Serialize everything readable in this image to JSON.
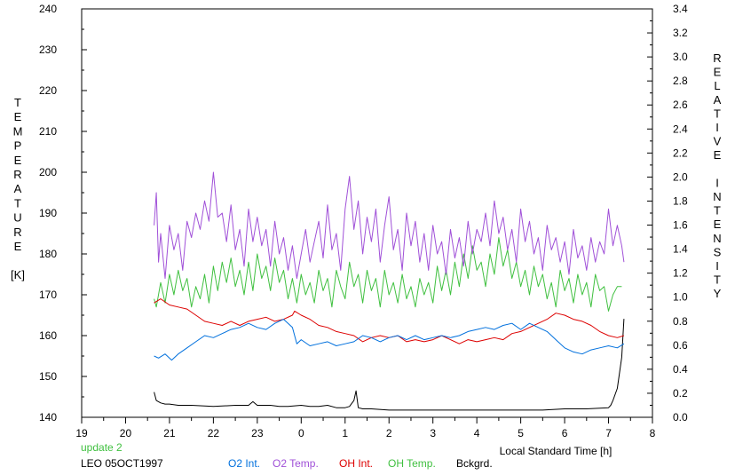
{
  "chart_data": {
    "type": "line",
    "title": "",
    "xlabel": "Local Standard Time [h]",
    "ylabel_left": "TEMPERATURE",
    "ylabel_left_unit": "[K]",
    "ylabel_right": "RELATIVE INTENSITY",
    "x_ticks": [
      "19",
      "20",
      "21",
      "22",
      "23",
      "0",
      "1",
      "2",
      "3",
      "4",
      "5",
      "6",
      "7",
      "8"
    ],
    "xlim": [
      0,
      13
    ],
    "ylim_left": [
      140,
      240
    ],
    "y_ticks_left": [
      "140",
      "150",
      "160",
      "170",
      "180",
      "190",
      "200",
      "210",
      "220",
      "230",
      "240"
    ],
    "ylim_right": [
      0.0,
      3.4
    ],
    "y_ticks_right": [
      "0.0",
      "0.2",
      "0.4",
      "0.6",
      "0.8",
      "1.0",
      "1.2",
      "1.4",
      "1.6",
      "1.8",
      "2.0",
      "2.2",
      "2.4",
      "2.6",
      "2.8",
      "3.0",
      "3.2",
      "3.4"
    ],
    "grid": false,
    "legend_position": "bottom",
    "series": [
      {
        "name": "O2 Int.",
        "color": "#0070dd",
        "axis": "left",
        "x": [
          1.65,
          1.75,
          1.9,
          2.05,
          2.2,
          2.4,
          2.6,
          2.8,
          3.0,
          3.2,
          3.4,
          3.6,
          3.8,
          4.0,
          4.2,
          4.4,
          4.6,
          4.8,
          4.9,
          5.0,
          5.2,
          5.4,
          5.6,
          5.8,
          6.0,
          6.2,
          6.4,
          6.6,
          6.8,
          7.0,
          7.2,
          7.4,
          7.6,
          7.8,
          8.0,
          8.2,
          8.4,
          8.6,
          8.8,
          9.0,
          9.2,
          9.4,
          9.6,
          9.8,
          10.0,
          10.2,
          10.4,
          10.6,
          10.8,
          11.0,
          11.2,
          11.4,
          11.6,
          11.8,
          12.0,
          12.2,
          12.35
        ],
        "values": [
          155,
          154.5,
          155.5,
          154,
          155.5,
          157,
          158.5,
          160,
          159.5,
          160.5,
          161.5,
          162,
          163,
          162,
          161.5,
          163,
          164,
          162,
          158,
          159,
          157.5,
          158,
          158.5,
          157.5,
          158,
          158.5,
          160,
          159.5,
          158.5,
          159.5,
          160,
          159,
          160,
          159,
          159.5,
          160,
          159.5,
          160,
          161,
          161.5,
          162,
          161.5,
          162.5,
          163,
          161.5,
          163,
          162,
          161,
          159,
          157,
          156,
          155.5,
          156.5,
          157,
          157.5,
          157,
          158
        ]
      },
      {
        "name": "O2 Temp.",
        "color": "#a050d8",
        "axis": "left",
        "x": [
          1.65,
          1.7,
          1.75,
          1.8,
          1.9,
          2.0,
          2.1,
          2.2,
          2.3,
          2.4,
          2.5,
          2.6,
          2.7,
          2.8,
          2.9,
          3.0,
          3.1,
          3.2,
          3.3,
          3.4,
          3.5,
          3.6,
          3.7,
          3.8,
          3.9,
          4.0,
          4.1,
          4.2,
          4.3,
          4.4,
          4.5,
          4.6,
          4.7,
          4.8,
          4.9,
          5.0,
          5.1,
          5.2,
          5.3,
          5.4,
          5.5,
          5.6,
          5.7,
          5.8,
          5.9,
          6.0,
          6.1,
          6.2,
          6.3,
          6.4,
          6.5,
          6.6,
          6.7,
          6.8,
          6.9,
          7.0,
          7.1,
          7.2,
          7.3,
          7.4,
          7.5,
          7.6,
          7.7,
          7.8,
          7.9,
          8.0,
          8.1,
          8.2,
          8.3,
          8.4,
          8.5,
          8.6,
          8.7,
          8.8,
          8.9,
          9.0,
          9.1,
          9.2,
          9.3,
          9.4,
          9.5,
          9.6,
          9.7,
          9.8,
          9.9,
          10.0,
          10.1,
          10.2,
          10.3,
          10.4,
          10.5,
          10.6,
          10.7,
          10.8,
          10.9,
          11.0,
          11.1,
          11.2,
          11.3,
          11.4,
          11.5,
          11.6,
          11.7,
          11.8,
          11.9,
          12.0,
          12.1,
          12.2,
          12.3,
          12.35
        ],
        "values": [
          187,
          195,
          178,
          185,
          174,
          187,
          181,
          185,
          176,
          188,
          184,
          190,
          186,
          193,
          188,
          200,
          189,
          190,
          183,
          192,
          181,
          186,
          177,
          191,
          183,
          189,
          182,
          186,
          177,
          188,
          180,
          184,
          176,
          182,
          174,
          180,
          186,
          178,
          183,
          188,
          179,
          192,
          181,
          185,
          176,
          191,
          199,
          186,
          193,
          180,
          189,
          183,
          191,
          178,
          187,
          194,
          181,
          186,
          176,
          190,
          182,
          188,
          178,
          185,
          176,
          187,
          180,
          183,
          175,
          186,
          179,
          184,
          177,
          188,
          180,
          186,
          183,
          190,
          182,
          193,
          185,
          189,
          181,
          186,
          178,
          191,
          183,
          188,
          180,
          184,
          176,
          187,
          181,
          184,
          178,
          183,
          175,
          186,
          179,
          182,
          176,
          184,
          178,
          183,
          180,
          191,
          182,
          187,
          182,
          178
        ]
      },
      {
        "name": "OH Int.",
        "color": "#dd0000",
        "axis": "left",
        "x": [
          1.65,
          1.8,
          2.0,
          2.2,
          2.4,
          2.6,
          2.8,
          3.0,
          3.2,
          3.4,
          3.6,
          3.8,
          4.0,
          4.2,
          4.4,
          4.6,
          4.8,
          4.85,
          5.0,
          5.2,
          5.4,
          5.6,
          5.8,
          6.0,
          6.2,
          6.4,
          6.6,
          6.8,
          7.0,
          7.2,
          7.4,
          7.6,
          7.8,
          8.0,
          8.2,
          8.4,
          8.6,
          8.8,
          9.0,
          9.2,
          9.4,
          9.6,
          9.8,
          10.0,
          10.2,
          10.4,
          10.6,
          10.8,
          11.0,
          11.2,
          11.4,
          11.6,
          11.8,
          12.0,
          12.2,
          12.35
        ],
        "values": [
          168,
          169,
          167.5,
          167,
          166.5,
          165,
          163.5,
          163,
          162.5,
          163.5,
          162.5,
          163.5,
          164,
          164.5,
          163.5,
          164,
          165,
          166,
          165,
          164,
          162.5,
          162,
          161,
          160.5,
          160,
          158.5,
          159.5,
          160,
          159.5,
          160,
          158.5,
          159,
          158.5,
          159,
          160,
          159,
          158,
          159,
          158.5,
          159,
          159.5,
          159,
          160.5,
          161,
          162,
          163,
          164,
          165.5,
          165,
          164,
          163.5,
          162.5,
          161,
          160,
          159.5,
          160
        ]
      },
      {
        "name": "OH Temp.",
        "color": "#40c040",
        "axis": "left",
        "x": [
          1.65,
          1.7,
          1.8,
          1.9,
          2.0,
          2.1,
          2.2,
          2.3,
          2.4,
          2.5,
          2.6,
          2.7,
          2.8,
          2.9,
          3.0,
          3.1,
          3.2,
          3.3,
          3.4,
          3.5,
          3.6,
          3.7,
          3.8,
          3.9,
          4.0,
          4.1,
          4.2,
          4.3,
          4.4,
          4.5,
          4.6,
          4.7,
          4.8,
          4.9,
          5.0,
          5.1,
          5.2,
          5.3,
          5.4,
          5.5,
          5.6,
          5.7,
          5.8,
          5.9,
          6.0,
          6.1,
          6.2,
          6.3,
          6.4,
          6.5,
          6.6,
          6.7,
          6.8,
          6.9,
          7.0,
          7.1,
          7.2,
          7.3,
          7.4,
          7.5,
          7.6,
          7.7,
          7.8,
          7.9,
          8.0,
          8.1,
          8.2,
          8.3,
          8.4,
          8.5,
          8.6,
          8.7,
          8.8,
          8.9,
          9.0,
          9.1,
          9.2,
          9.3,
          9.4,
          9.5,
          9.6,
          9.7,
          9.8,
          9.9,
          10.0,
          10.1,
          10.2,
          10.3,
          10.4,
          10.5,
          10.6,
          10.7,
          10.8,
          10.9,
          11.0,
          11.1,
          11.2,
          11.3,
          11.4,
          11.5,
          11.6,
          11.7,
          11.8,
          11.9,
          12.0,
          12.1,
          12.2,
          12.3
        ],
        "values": [
          169,
          167,
          173,
          168,
          175,
          170,
          176,
          171,
          174,
          167,
          172,
          169,
          175,
          168,
          177,
          171,
          178,
          173,
          179,
          172,
          176,
          170,
          178,
          171,
          180,
          174,
          177,
          171,
          179,
          173,
          176,
          169,
          174,
          168,
          175,
          170,
          173,
          168,
          176,
          171,
          174,
          167,
          176,
          172,
          169,
          178,
          172,
          175,
          168,
          176,
          171,
          174,
          167,
          176,
          170,
          173,
          168,
          175,
          169,
          172,
          167,
          174,
          170,
          173,
          168,
          177,
          171,
          176,
          170,
          178,
          172,
          180,
          174,
          182,
          176,
          178,
          172,
          180,
          175,
          184,
          177,
          181,
          174,
          178,
          172,
          176,
          170,
          177,
          172,
          175,
          169,
          173,
          167,
          176,
          171,
          174,
          168,
          175,
          170,
          173,
          167,
          175,
          171,
          172,
          166,
          170,
          172,
          172
        ]
      },
      {
        "name": "Bckgrd.",
        "color": "#000000",
        "axis": "right",
        "x": [
          1.65,
          1.7,
          1.8,
          1.9,
          2.0,
          2.2,
          2.5,
          3.0,
          3.5,
          3.8,
          3.9,
          4.0,
          4.3,
          4.5,
          4.7,
          5.0,
          5.2,
          5.4,
          5.6,
          5.8,
          6.0,
          6.1,
          6.2,
          6.25,
          6.3,
          6.4,
          6.6,
          7.0,
          7.5,
          8.0,
          8.5,
          9.0,
          9.5,
          10.0,
          10.5,
          11.0,
          11.5,
          12.0,
          12.05,
          12.1,
          12.2,
          12.3,
          12.35
        ],
        "values": [
          0.21,
          0.14,
          0.12,
          0.11,
          0.11,
          0.1,
          0.1,
          0.09,
          0.1,
          0.1,
          0.13,
          0.1,
          0.1,
          0.09,
          0.09,
          0.1,
          0.09,
          0.09,
          0.1,
          0.08,
          0.08,
          0.09,
          0.14,
          0.22,
          0.08,
          0.07,
          0.07,
          0.06,
          0.06,
          0.06,
          0.06,
          0.06,
          0.06,
          0.06,
          0.06,
          0.07,
          0.07,
          0.08,
          0.1,
          0.14,
          0.24,
          0.5,
          0.82
        ]
      }
    ]
  },
  "footer": {
    "update_label": "update 2",
    "station_date": "LEO 05OCT1997",
    "legend_labels": [
      "O2 Int.",
      "O2 Temp.",
      "OH Int.",
      "OH Temp.",
      "Bckgrd."
    ]
  },
  "colors": {
    "o2_int": "#0070dd",
    "o2_temp": "#a050d8",
    "oh_int": "#dd0000",
    "oh_temp": "#40c040",
    "bckgrd": "#000000",
    "update": "#40c040"
  }
}
